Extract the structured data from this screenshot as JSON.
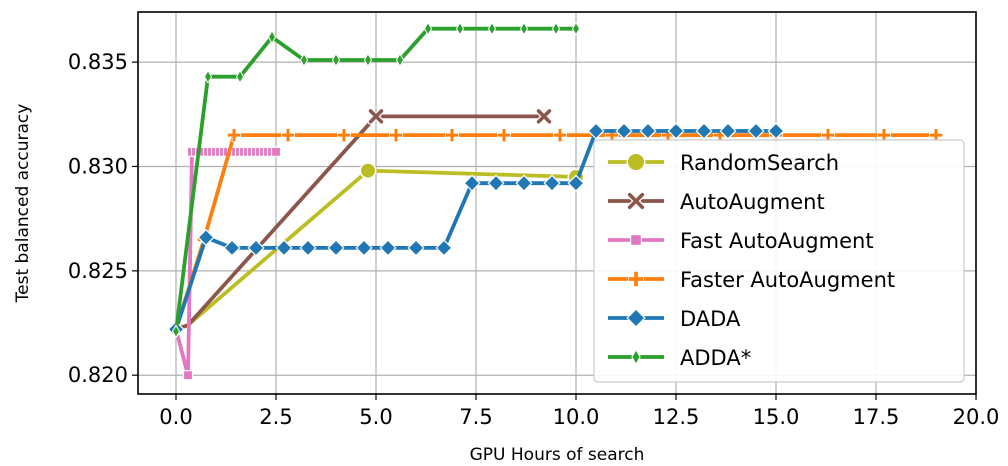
{
  "chart_data": {
    "type": "line",
    "title": "",
    "xlabel": "GPU Hours of search",
    "ylabel": "Test balanced accuracy",
    "xlim": [
      -0.95,
      20.0
    ],
    "ylim": [
      0.8191,
      0.8374
    ],
    "xticks": [
      0.0,
      2.5,
      5.0,
      7.5,
      10.0,
      12.5,
      15.0,
      17.5,
      20.0
    ],
    "xtick_labels": [
      "0.0",
      "2.5",
      "5.0",
      "7.5",
      "10.0",
      "12.5",
      "15.0",
      "17.5",
      "20.0"
    ],
    "yticks": [
      0.82,
      0.825,
      0.83,
      0.835
    ],
    "ytick_labels": [
      "0.820",
      "0.825",
      "0.830",
      "0.835"
    ],
    "grid": true,
    "legend_position": "right",
    "series": [
      {
        "name": "RandomSearch",
        "color": "#bcbd22",
        "marker": "circle",
        "linestyle": "solid",
        "x": [
          0.0,
          0.3,
          4.8,
          10.0
        ],
        "y": [
          0.8222,
          0.8224,
          0.8298,
          0.8295
        ],
        "markers_at": [
          4.8,
          10.0
        ]
      },
      {
        "name": "AutoAugment",
        "color": "#8c564b",
        "marker": "x",
        "linestyle": "solid",
        "x": [
          0.0,
          0.3,
          5.0,
          9.2
        ],
        "y": [
          0.8222,
          0.8224,
          0.8324,
          0.8324
        ],
        "markers_at": [
          5.0,
          9.2
        ]
      },
      {
        "name": "Fast AutoAugment",
        "color": "#e377c2",
        "marker": "square",
        "linestyle": "solid",
        "x": [
          0.0,
          0.3,
          0.4,
          0.5,
          0.6,
          0.7,
          0.8,
          0.9,
          1.0,
          1.1,
          1.2,
          1.3,
          1.4,
          1.5,
          1.6,
          1.7,
          1.8,
          1.9,
          2.0,
          2.1,
          2.2,
          2.3,
          2.4,
          2.5
        ],
        "y": [
          0.8222,
          0.82,
          0.8307,
          0.8307,
          0.8307,
          0.8307,
          0.8307,
          0.8307,
          0.8307,
          0.8307,
          0.8307,
          0.8307,
          0.8307,
          0.8307,
          0.8307,
          0.8307,
          0.8307,
          0.8307,
          0.8307,
          0.8307,
          0.8307,
          0.8307,
          0.8307,
          0.8307
        ],
        "markers_at": "all_except_first"
      },
      {
        "name": "Faster AutoAugment",
        "color": "#ff7f0e",
        "marker": "plus",
        "linestyle": "solid",
        "x": [
          0.0,
          0.7,
          1.45,
          2.8,
          4.2,
          5.5,
          6.9,
          8.2,
          9.6,
          10.9,
          12.3,
          13.6,
          15.0,
          16.3,
          17.7,
          19.0
        ],
        "y": [
          0.8222,
          0.8265,
          0.8315,
          0.8315,
          0.8315,
          0.8315,
          0.8315,
          0.8315,
          0.8315,
          0.8315,
          0.8315,
          0.8315,
          0.8315,
          0.8315,
          0.8315,
          0.8315
        ],
        "markers_at": "all_except_first"
      },
      {
        "name": "DADA",
        "color": "#1f77b4",
        "marker": "diamond",
        "linestyle": "solid",
        "x": [
          0.0,
          0.75,
          1.4,
          2.0,
          2.7,
          3.3,
          4.0,
          4.7,
          5.3,
          6.0,
          6.7,
          7.4,
          8.0,
          8.7,
          9.4,
          10.0,
          10.5,
          11.2,
          11.8,
          12.5,
          13.2,
          13.8,
          14.5,
          15.0
        ],
        "y": [
          0.8222,
          0.8266,
          0.8261,
          0.8261,
          0.8261,
          0.8261,
          0.8261,
          0.8261,
          0.8261,
          0.8261,
          0.8261,
          0.8292,
          0.8292,
          0.8292,
          0.8292,
          0.8292,
          0.8317,
          0.8317,
          0.8317,
          0.8317,
          0.8317,
          0.8317,
          0.8317,
          0.8317
        ],
        "markers_at": "all"
      },
      {
        "name": "ADDA*",
        "color": "#2ca02c",
        "marker": "thin-diamond",
        "linestyle": "solid",
        "x": [
          0.0,
          0.8,
          1.6,
          2.4,
          3.2,
          4.0,
          4.8,
          5.6,
          6.3,
          7.1,
          7.9,
          8.7,
          9.5,
          10.0
        ],
        "y": [
          0.8221,
          0.8343,
          0.8343,
          0.8362,
          0.8351,
          0.8351,
          0.8351,
          0.8351,
          0.8366,
          0.8366,
          0.8366,
          0.8366,
          0.8366,
          0.8366
        ],
        "markers_at": "all"
      }
    ]
  }
}
